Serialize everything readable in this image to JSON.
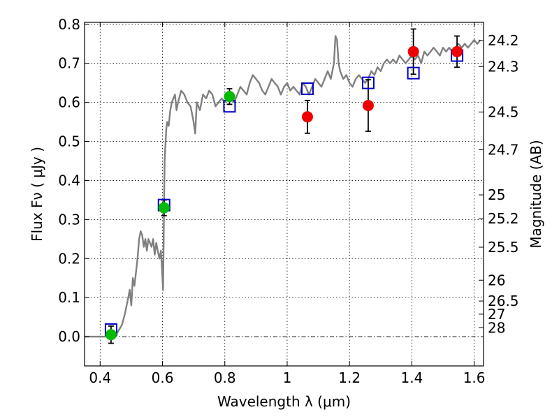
{
  "chart_data": {
    "type": "scatter",
    "xlabel": "Wavelength  λ (μm)",
    "ylabel": "Flux  Fν  ( μJy )",
    "y2label": "Magnitude (AB)",
    "xlim": [
      0.35,
      1.63
    ],
    "ylim": [
      -0.075,
      0.805
    ],
    "x_ticks": [
      0.4,
      0.6,
      0.8,
      1.0,
      1.2,
      1.4,
      1.6
    ],
    "x_tick_labels": [
      "0.4",
      "0.6",
      "0.8",
      "1",
      "1.2",
      "1.4",
      "1.6"
    ],
    "y_ticks": [
      0.0,
      0.1,
      0.2,
      0.3,
      0.4,
      0.5,
      0.6,
      0.7,
      0.8
    ],
    "y_tick_labels": [
      "0.0",
      "0.1",
      "0.2",
      "0.3",
      "0.4",
      "0.5",
      "0.6",
      "0.7",
      "0.8"
    ],
    "mag_ticks": [
      {
        "mag": 24.2,
        "label": "24.2"
      },
      {
        "mag": 24.3,
        "label": "24.3"
      },
      {
        "mag": 24.5,
        "label": "24.5"
      },
      {
        "mag": 24.7,
        "label": "24.7"
      },
      {
        "mag": 25.0,
        "label": "25"
      },
      {
        "mag": 25.2,
        "label": "25.2"
      },
      {
        "mag": 25.5,
        "label": "25.5"
      },
      {
        "mag": 26.0,
        "label": "26"
      },
      {
        "mag": 26.5,
        "label": "26.5"
      },
      {
        "mag": 27.0,
        "label": "27"
      },
      {
        "mag": 28.0,
        "label": "28"
      }
    ],
    "grid": true,
    "zero_line": true,
    "colors": {
      "model": "#808080",
      "green": "#00bb00",
      "red": "#ee0000",
      "box": "#0000cc",
      "errbar": "#000000"
    },
    "series": [
      {
        "name": "Model spectrum",
        "kind": "line",
        "x": [
          0.35,
          0.43,
          0.44,
          0.455,
          0.47,
          0.48,
          0.49,
          0.495,
          0.5,
          0.505,
          0.51,
          0.52,
          0.525,
          0.53,
          0.535,
          0.54,
          0.545,
          0.55,
          0.555,
          0.56,
          0.565,
          0.57,
          0.575,
          0.58,
          0.585,
          0.59,
          0.595,
          0.598,
          0.6,
          0.602,
          0.605,
          0.607,
          0.61,
          0.612,
          0.615,
          0.62,
          0.625,
          0.63,
          0.64,
          0.645,
          0.65,
          0.66,
          0.67,
          0.68,
          0.69,
          0.7,
          0.705,
          0.71,
          0.72,
          0.73,
          0.74,
          0.75,
          0.76,
          0.77,
          0.78,
          0.79,
          0.8,
          0.81,
          0.82,
          0.83,
          0.84,
          0.85,
          0.86,
          0.87,
          0.88,
          0.89,
          0.9,
          0.91,
          0.92,
          0.93,
          0.94,
          0.95,
          0.96,
          0.97,
          0.98,
          0.99,
          1.0,
          1.01,
          1.02,
          1.03,
          1.04,
          1.05,
          1.06,
          1.07,
          1.08,
          1.09,
          1.1,
          1.11,
          1.12,
          1.13,
          1.14,
          1.15,
          1.155,
          1.16,
          1.165,
          1.17,
          1.18,
          1.19,
          1.2,
          1.21,
          1.22,
          1.23,
          1.24,
          1.25,
          1.26,
          1.27,
          1.28,
          1.29,
          1.3,
          1.31,
          1.32,
          1.33,
          1.34,
          1.35,
          1.36,
          1.37,
          1.38,
          1.39,
          1.4,
          1.41,
          1.42,
          1.43,
          1.44,
          1.45,
          1.46,
          1.47,
          1.48,
          1.49,
          1.5,
          1.51,
          1.52,
          1.53,
          1.54,
          1.55,
          1.56,
          1.57,
          1.58,
          1.59,
          1.6,
          1.61,
          1.62
        ],
        "y": [
          0.0,
          0.0,
          0.0,
          0.01,
          0.03,
          0.06,
          0.1,
          0.12,
          0.08,
          0.15,
          0.13,
          0.2,
          0.25,
          0.27,
          0.26,
          0.23,
          0.25,
          0.22,
          0.25,
          0.24,
          0.23,
          0.25,
          0.21,
          0.24,
          0.22,
          0.2,
          0.22,
          0.18,
          0.15,
          0.12,
          0.34,
          0.45,
          0.5,
          0.53,
          0.55,
          0.54,
          0.58,
          0.6,
          0.62,
          0.58,
          0.6,
          0.63,
          0.62,
          0.6,
          0.59,
          0.55,
          0.52,
          0.6,
          0.58,
          0.62,
          0.61,
          0.63,
          0.62,
          0.59,
          0.6,
          0.61,
          0.6,
          0.62,
          0.61,
          0.6,
          0.62,
          0.64,
          0.63,
          0.62,
          0.65,
          0.67,
          0.66,
          0.65,
          0.63,
          0.62,
          0.64,
          0.66,
          0.65,
          0.64,
          0.62,
          0.64,
          0.65,
          0.63,
          0.64,
          0.63,
          0.62,
          0.65,
          0.64,
          0.62,
          0.64,
          0.66,
          0.65,
          0.64,
          0.66,
          0.68,
          0.66,
          0.7,
          0.77,
          0.76,
          0.7,
          0.68,
          0.66,
          0.67,
          0.65,
          0.64,
          0.66,
          0.67,
          0.66,
          0.65,
          0.66,
          0.68,
          0.67,
          0.69,
          0.68,
          0.7,
          0.71,
          0.7,
          0.71,
          0.7,
          0.72,
          0.71,
          0.7,
          0.71,
          0.72,
          0.71,
          0.72,
          0.7,
          0.73,
          0.72,
          0.73,
          0.74,
          0.73,
          0.72,
          0.74,
          0.73,
          0.74,
          0.73,
          0.74,
          0.75,
          0.74,
          0.75,
          0.74,
          0.75,
          0.76,
          0.75,
          0.76
        ]
      },
      {
        "name": "Model band fluxes",
        "kind": "box",
        "x": [
          0.435,
          0.605,
          0.815,
          1.065,
          1.26,
          1.405,
          1.545
        ],
        "y": [
          0.018,
          0.337,
          0.59,
          0.635,
          0.65,
          0.675,
          0.72
        ]
      },
      {
        "name": "Observed (green)",
        "kind": "point",
        "x": [
          0.435,
          0.605,
          0.815
        ],
        "y": [
          0.005,
          0.33,
          0.615
        ],
        "err": [
          0.022,
          0.02,
          0.02
        ]
      },
      {
        "name": "Observed (red)",
        "kind": "point",
        "x": [
          1.065,
          1.26,
          1.405,
          1.545
        ],
        "y": [
          0.563,
          0.592,
          0.73,
          0.73
        ],
        "err": [
          0.042,
          0.066,
          0.058,
          0.04
        ]
      }
    ]
  }
}
